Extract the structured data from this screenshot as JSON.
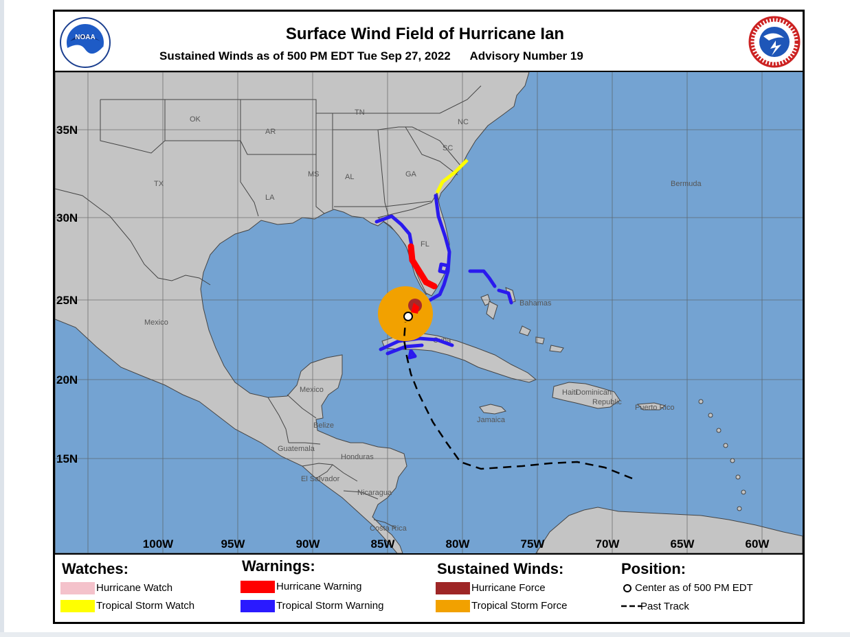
{
  "header": {
    "title": "Surface Wind Field of Hurricane Ian",
    "subtitle": "Sustained Winds as of 500 PM EDT Tue Sep 27, 2022",
    "advisory": "Advisory Number 19",
    "left_logo": "noaa-logo",
    "right_logo": "national-weather-service-logo",
    "left_logo_text": "NOAA",
    "right_logo_text": "NATIONAL WEATHER SERVICE"
  },
  "map": {
    "colors": {
      "ocean": "#74a3d2",
      "land": "#c4c4c4",
      "grid": "#555555",
      "border": "#444444"
    },
    "lat_labels": [
      "35N",
      "30N",
      "25N",
      "20N",
      "15N"
    ],
    "lon_labels": [
      "100W",
      "95W",
      "90W",
      "85W",
      "80W",
      "75W",
      "70W",
      "65W",
      "60W"
    ],
    "places": {
      "ok": "OK",
      "ar": "AR",
      "tn": "TN",
      "nc": "NC",
      "sc": "SC",
      "tx": "TX",
      "ms": "MS",
      "al": "AL",
      "ga": "GA",
      "la": "LA",
      "fl": "FL",
      "bermuda": "Bermuda",
      "mexico_main": "Mexico",
      "mexico_yucatan": "Mexico",
      "bahamas": "Bahamas",
      "cuba": "Cuba",
      "haiti": "Haiti",
      "dominican": "Dominican",
      "republic": "Republic",
      "puerto_rico": "Puerto Rico",
      "jamaica": "Jamaica",
      "belize": "Belize",
      "guatemala": "Guatemala",
      "honduras": "Honduras",
      "el_salvador": "El Salvador",
      "nicaragua": "Nicaragua",
      "costa_rica": "Costa Rica"
    },
    "center_position": "Center as of 500 PM EDT",
    "wind_colors": {
      "tropical_storm_force": "#f2a100",
      "hurricane_force": "#a52a2a"
    },
    "warning_colors": {
      "hurricane_warning": "#ff0000",
      "tropical_storm_warning": "#1a1aee",
      "tropical_storm_watch": "#ffff00"
    }
  },
  "legend": {
    "watches": {
      "heading": "Watches:",
      "items": [
        {
          "label": "Hurricane Watch",
          "color": "#f4c2cb"
        },
        {
          "label": "Tropical Storm Watch",
          "color": "#ffff00"
        }
      ]
    },
    "warnings": {
      "heading": "Warnings:",
      "items": [
        {
          "label": "Hurricane Warning",
          "color": "#ff0000"
        },
        {
          "label": "Tropical Storm Warning",
          "color": "#2a1aff"
        }
      ]
    },
    "winds": {
      "heading": "Sustained Winds:",
      "items": [
        {
          "label": "Hurricane Force",
          "color": "#9e2626"
        },
        {
          "label": "Tropical Storm Force",
          "color": "#f2a100"
        }
      ]
    },
    "position": {
      "heading": "Position:",
      "center_label": "Center as of 500 PM EDT",
      "track_label": "Past Track"
    }
  }
}
